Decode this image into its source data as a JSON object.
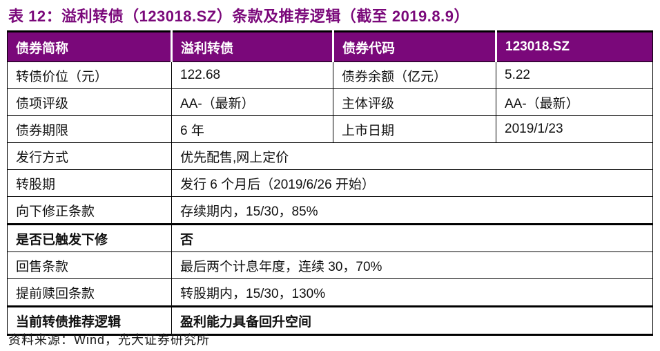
{
  "title": "表 12：溢利转债（123018.SZ）条款及推荐逻辑（截至 2019.8.9）",
  "colors": {
    "accent_purple": "#7A087A",
    "header_text": "#FFFFFF",
    "border": "#000000"
  },
  "table": {
    "header": [
      "债券简称",
      "溢利转债",
      "债券代码",
      "123018.SZ"
    ],
    "rows": [
      {
        "label": "转债价位（元）",
        "value": "122.68",
        "label2": "债券余额（亿元）",
        "value2": "5.22"
      },
      {
        "label": "债项评级",
        "value": "AA-（最新）",
        "label2": "主体评级",
        "value2": "AA-（最新）"
      },
      {
        "label": "债券期限",
        "value": "6 年",
        "label2": "上市日期",
        "value2": "2019/1/23"
      },
      {
        "label": "发行方式",
        "value": "优先配售,网上定价"
      },
      {
        "label": "转股期",
        "value": "发行 6 个月后（2019/6/26 开始）"
      },
      {
        "label": "向下修正条款",
        "value": "存续期内，15/30，85%"
      },
      {
        "label": "是否已触发下修",
        "value": "否"
      },
      {
        "label": "回售条款",
        "value": "最后两个计息年度，连续 30，70%"
      },
      {
        "label": "提前赎回条款",
        "value": "转股期内，15/30，130%"
      },
      {
        "label": "当前转债推荐逻辑",
        "value": "盈利能力具备回升空间"
      }
    ]
  },
  "footer": {
    "source_note": "资料来源：Wind，光大证券研究所"
  }
}
